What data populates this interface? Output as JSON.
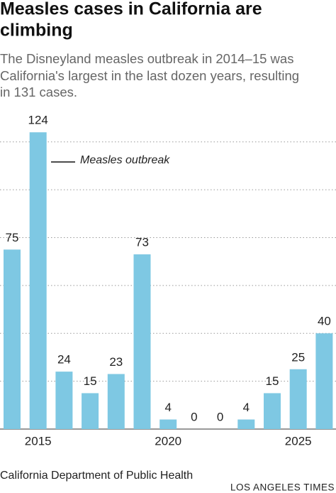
{
  "chart_data": {
    "type": "bar",
    "title": [
      "Measles cases in California are",
      "climbing"
    ],
    "subtitle": [
      "The Disneyland measles outbreak in 2014–15 was",
      "California's largest in the last dozen years, resulting",
      "in 131 cases."
    ],
    "annotation": "Measles outbreak",
    "source": "California Department of Public Health",
    "credit": "LOS ANGELES TIMES",
    "categories": [
      null,
      "2015",
      null,
      null,
      null,
      null,
      "2020",
      null,
      null,
      null,
      null,
      "2025",
      null
    ],
    "values": [
      75,
      124,
      24,
      15,
      23,
      73,
      4,
      0,
      0,
      4,
      15,
      25,
      40
    ],
    "color": "#7ec8e3",
    "ylim": [
      0,
      130
    ],
    "yticks": [
      20,
      40,
      60,
      80,
      100,
      120
    ],
    "grid": true
  }
}
